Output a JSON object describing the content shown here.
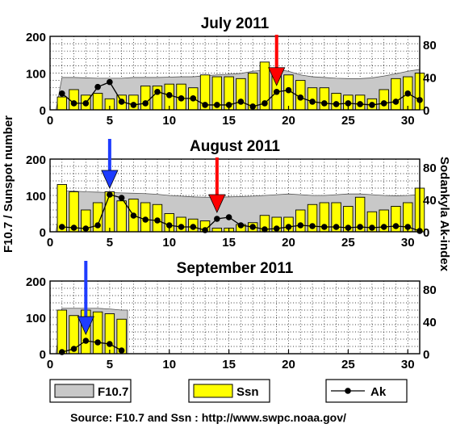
{
  "y_left_label": "F10.7 / Sunspot number",
  "y_right_label": "Sodankyla Ak-index",
  "legend": {
    "f107": "F10.7",
    "ssn": "Ssn",
    "ak": "Ak"
  },
  "source": "Source: F10.7 and Ssn : http://www.swpc.noaa.gov/",
  "colors": {
    "f107_fill": "#c8c8c8",
    "ssn_fill": "#ffff00",
    "red_arrow": "#ff0000",
    "blue_arrow": "#1e3cff"
  },
  "chart_data": [
    {
      "type": "bar",
      "title": "July  2011",
      "x_ticks": [
        0,
        5,
        10,
        15,
        20,
        25,
        30
      ],
      "y_left_ticks": [
        0,
        100,
        200
      ],
      "y_right_ticks": [
        0,
        40,
        80
      ],
      "ylim_left": [
        0,
        200
      ],
      "ylim_right": [
        0,
        90
      ],
      "days": 31,
      "ssn": [
        35,
        55,
        40,
        45,
        30,
        40,
        40,
        65,
        65,
        70,
        70,
        60,
        95,
        90,
        90,
        85,
        100,
        130,
        105,
        95,
        80,
        60,
        60,
        45,
        40,
        40,
        30,
        55,
        85,
        90,
        100
      ],
      "f107": [
        88,
        88,
        87,
        86,
        86,
        86,
        88,
        88,
        88,
        89,
        90,
        90,
        93,
        95,
        97,
        99,
        105,
        108,
        110,
        105,
        95,
        90,
        88,
        86,
        85,
        85,
        87,
        92,
        98,
        105,
        110
      ],
      "ak": [
        20,
        8,
        8,
        28,
        34,
        10,
        6,
        8,
        22,
        18,
        14,
        14,
        6,
        6,
        6,
        10,
        4,
        8,
        22,
        24,
        15,
        10,
        8,
        7,
        8,
        7,
        6,
        8,
        10,
        20,
        12
      ],
      "arrows": [
        {
          "day": 19,
          "color": "red"
        }
      ]
    },
    {
      "type": "bar",
      "title": "August  2011",
      "x_ticks": [
        0,
        5,
        10,
        15,
        20,
        25,
        30
      ],
      "y_left_ticks": [
        0,
        100,
        200
      ],
      "y_right_ticks": [
        0,
        40,
        80
      ],
      "ylim_left": [
        0,
        200
      ],
      "ylim_right": [
        0,
        90
      ],
      "days": 31,
      "ssn": [
        130,
        110,
        60,
        80,
        110,
        85,
        90,
        80,
        75,
        50,
        40,
        35,
        30,
        10,
        10,
        20,
        25,
        45,
        40,
        40,
        60,
        75,
        80,
        80,
        70,
        95,
        55,
        60,
        70,
        80,
        120
      ],
      "f107": [
        112,
        112,
        110,
        109,
        108,
        107,
        106,
        105,
        103,
        100,
        98,
        96,
        95,
        95,
        96,
        97,
        98,
        100,
        102,
        104,
        102,
        100,
        100,
        102,
        104,
        104,
        102,
        100,
        99,
        100,
        102
      ],
      "ak": [
        6,
        5,
        4,
        8,
        46,
        42,
        20,
        15,
        14,
        8,
        6,
        6,
        2,
        16,
        18,
        8,
        6,
        3,
        4,
        6,
        8,
        7,
        6,
        6,
        5,
        6,
        5,
        6,
        7,
        6,
        1
      ],
      "arrows": [
        {
          "day": 5,
          "color": "blue"
        },
        {
          "day": 14,
          "color": "red"
        }
      ]
    },
    {
      "type": "bar",
      "title": "September  2011",
      "x_ticks": [
        0,
        5,
        10,
        15,
        20,
        25,
        30
      ],
      "y_left_ticks": [
        0,
        100,
        200
      ],
      "y_right_ticks": [
        0,
        40,
        80
      ],
      "ylim_left": [
        0,
        200
      ],
      "ylim_right": [
        0,
        90
      ],
      "days": 31,
      "ssn": [
        120,
        105,
        120,
        115,
        110,
        95
      ],
      "f107": [
        125,
        125,
        125,
        125,
        123,
        120
      ],
      "ak": [
        2,
        6,
        16,
        14,
        12,
        4
      ],
      "arrows": [
        {
          "day": 3,
          "color": "blue"
        }
      ]
    }
  ]
}
